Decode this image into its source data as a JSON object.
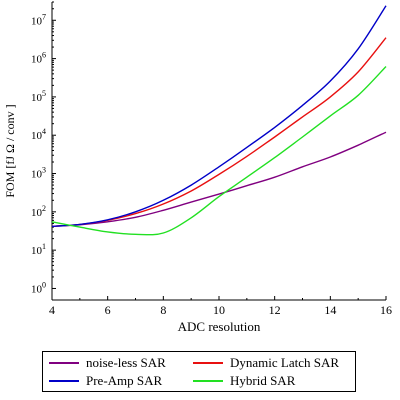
{
  "chart_data": {
    "type": "line",
    "xlabel": "ADC resolution",
    "ylabel": "FOM [fJ Ω / conv ]",
    "xlim": [
      4,
      16
    ],
    "ylim": [
      0.5,
      30000000
    ],
    "yscale": "log",
    "x_ticks": [
      "4",
      "6",
      "8",
      "10",
      "12",
      "14",
      "16"
    ],
    "y_ticks": [
      {
        "base": "10",
        "exp": "0"
      },
      {
        "base": "10",
        "exp": "1"
      },
      {
        "base": "10",
        "exp": "2"
      },
      {
        "base": "10",
        "exp": "3"
      },
      {
        "base": "10",
        "exp": "4"
      },
      {
        "base": "10",
        "exp": "5"
      },
      {
        "base": "10",
        "exp": "6"
      },
      {
        "base": "10",
        "exp": "7"
      }
    ],
    "legend_position": "bottom",
    "series": [
      {
        "name": "noise-less SAR",
        "color": "#800080",
        "x": [
          4,
          5,
          6,
          7,
          8,
          9,
          10,
          11,
          12,
          13,
          14,
          15,
          16
        ],
        "y": [
          42,
          46,
          55,
          72,
          110,
          180,
          290,
          480,
          800,
          1500,
          2700,
          5500,
          12000
        ]
      },
      {
        "name": "Dynamic Latch SAR",
        "color": "#e81010",
        "x": [
          4,
          5,
          6,
          7,
          8,
          9,
          10,
          11,
          12,
          13,
          14,
          15,
          16
        ],
        "y": [
          42,
          47,
          60,
          90,
          160,
          350,
          950,
          2800,
          9000,
          30000,
          100000,
          450000,
          3500000
        ]
      },
      {
        "name": "Pre-Amp SAR",
        "color": "#0000c8",
        "x": [
          4,
          5,
          6,
          7,
          8,
          9,
          10,
          11,
          12,
          13,
          14,
          15,
          16
        ],
        "y": [
          42,
          47,
          62,
          100,
          200,
          500,
          1500,
          4800,
          16000,
          60000,
          260000,
          1800000,
          24000000
        ]
      },
      {
        "name": "Hybrid SAR",
        "color": "#22e022",
        "x": [
          4,
          5,
          6,
          7,
          8,
          9,
          10,
          11,
          12,
          13,
          14,
          15,
          16
        ],
        "y": [
          55,
          40,
          30,
          26,
          28,
          70,
          250,
          800,
          2600,
          9000,
          32000,
          110000,
          620000
        ]
      }
    ]
  }
}
